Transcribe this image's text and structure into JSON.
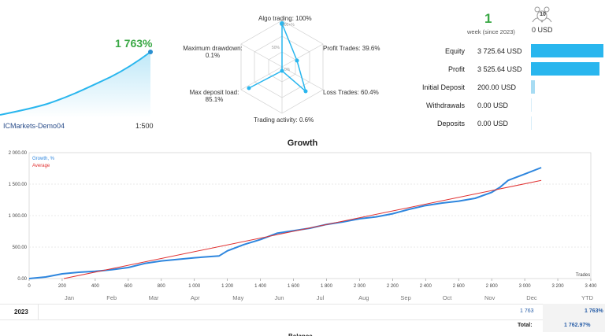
{
  "summary": {
    "gain": "1 763%",
    "account_name": "ICMarkets-Demo04",
    "leverage": "1:500"
  },
  "radar": {
    "algo_trading": "Algo trading: 100%",
    "scale_100": "100+%",
    "scale_50": "50%",
    "scale_0": "0%",
    "profit_trades": "Profit Trades: 39.6%",
    "loss_trades": "Loss Trades: 60.4%",
    "trading_activity": "Trading activity: 0.6%",
    "max_deposit_load_label": "Max deposit load:",
    "max_deposit_load_value": "85.1%",
    "max_drawdown_label": "Maximum drawdown:",
    "max_drawdown_value": "0.1%"
  },
  "info": {
    "weeks": "1",
    "weeks_label": "week (since 2023)",
    "subscribers_count": "10",
    "subscription_price": "0 USD"
  },
  "stats": [
    {
      "label": "Equity",
      "value": "3 725.64 USD",
      "fraction": 1.0
    },
    {
      "label": "Profit",
      "value": "3 525.64 USD",
      "fraction": 0.946
    },
    {
      "label": "Initial Deposit",
      "value": "200.00 USD",
      "fraction": 0.054
    },
    {
      "label": "Withdrawals",
      "value": "0.00 USD",
      "fraction": 0
    },
    {
      "label": "Deposits",
      "value": "0.00 USD",
      "fraction": 0
    }
  ],
  "chart_data": {
    "type": "line",
    "title": "Growth",
    "xlabel": "Trades",
    "xlim": [
      0,
      3400
    ],
    "ylim": [
      0,
      2000
    ],
    "x_ticks": [
      "0",
      "200",
      "400",
      "600",
      "800",
      "1 000",
      "1 200",
      "1 400",
      "1 600",
      "1 800",
      "2 000",
      "2 200",
      "2 400",
      "2 600",
      "2 800",
      "3 000",
      "3 200",
      "3 400"
    ],
    "y_ticks": [
      "0.00",
      "500.00",
      "1 000.00",
      "1 500.00",
      "2 000.00"
    ],
    "series": [
      {
        "name": "Growth, %",
        "color": "#2e86de",
        "x": [
          0,
          100,
          200,
          300,
          400,
          500,
          600,
          700,
          800,
          900,
          1000,
          1100,
          1150,
          1200,
          1300,
          1400,
          1500,
          1600,
          1700,
          1800,
          1900,
          2000,
          2100,
          2200,
          2300,
          2400,
          2500,
          2600,
          2700,
          2800,
          2850,
          2900,
          3000,
          3100
        ],
        "values": [
          0,
          25,
          75,
          100,
          115,
          140,
          175,
          240,
          280,
          305,
          330,
          350,
          360,
          440,
          540,
          620,
          720,
          760,
          800,
          860,
          900,
          950,
          980,
          1030,
          1100,
          1160,
          1200,
          1230,
          1275,
          1370,
          1450,
          1560,
          1660,
          1763
        ]
      },
      {
        "name": "Average",
        "color": "#e03030",
        "x": [
          210,
          3100
        ],
        "values": [
          0,
          1560
        ]
      }
    ]
  },
  "table": {
    "months": [
      "Jan",
      "Feb",
      "Mar",
      "Apr",
      "May",
      "Jun",
      "Jul",
      "Aug",
      "Sep",
      "Oct",
      "Nov",
      "Dec"
    ],
    "ytd_header": "YTD",
    "year": "2023",
    "dec_value": "1 763",
    "ytd_value": "1 763%",
    "total_label": "Total:",
    "total_value": "1 762.97%"
  },
  "bottom_partial": "Balance"
}
